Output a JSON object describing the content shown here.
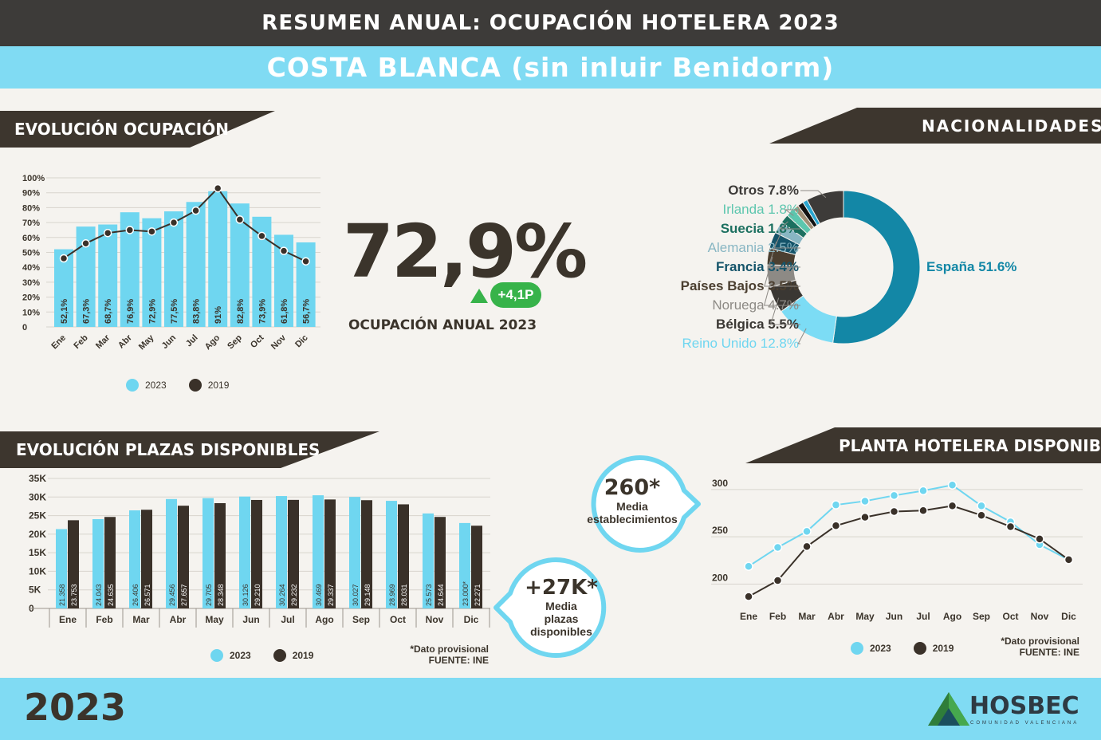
{
  "header": {
    "title": "RESUMEN ANUAL: OCUPACIÓN HOTELERA 2023",
    "subtitle": "COSTA BLANCA (sin inluir Benidorm)"
  },
  "colors": {
    "accent": "#80dbf3",
    "dark": "#3d3b39",
    "brown": "#3b342b",
    "green": "#37b34a",
    "bar2023": "#6fd6f0",
    "bar2019": "#3a3129"
  },
  "sections": {
    "ocupacion": "EVOLUCIÓN OCUPACIÓN",
    "nacionalidades": "NACIONALIDADES",
    "plazas": "EVOLUCIÓN PLAZAS DISPONIBLES",
    "planta": "PLANTA HOTELERA DISPONIBLE"
  },
  "kpi": {
    "value": "72,9%",
    "change": "+4,1P",
    "label": "OCUPACIÓN ANUAL 2023"
  },
  "bubbles": {
    "establecimientos": {
      "value": "260*",
      "line1": "Media",
      "line2": "establecimientos"
    },
    "plazas": {
      "value": "+27K*",
      "line1": "Media",
      "line2": "plazas",
      "line3": "disponibles"
    }
  },
  "legend": {
    "y2023": "2023",
    "y2019": "2019"
  },
  "notes": {
    "plazas": [
      "*Dato provisional",
      "FUENTE: INE"
    ],
    "planta": [
      "*Dato provisional",
      "FUENTE: INE"
    ]
  },
  "footer": {
    "year": "2023",
    "logo": "HOSBEC",
    "logo_sub": "COMUNIDAD VALENCIANA"
  },
  "chart_data": [
    {
      "type": "bar",
      "name": "ocupacion",
      "categories": [
        "Ene",
        "Feb",
        "Mar",
        "Abr",
        "May",
        "Jun",
        "Jul",
        "Ago",
        "Sep",
        "Oct",
        "Nov",
        "Dic"
      ],
      "series": [
        {
          "name": "2023",
          "values": [
            52.1,
            67.3,
            68.7,
            76.9,
            72.9,
            77.5,
            83.8,
            91,
            82.8,
            73.9,
            61.8,
            56.7
          ],
          "labels": [
            "52,1%",
            "67,3%",
            "68,7%",
            "76,9%",
            "72,9%",
            "77,5%",
            "83,8%",
            "91%",
            "82,8%",
            "73,9%",
            "61,8%",
            "56,7%"
          ]
        },
        {
          "name": "2019",
          "values": [
            46,
            56,
            63,
            65,
            64,
            70,
            78,
            93,
            72,
            61,
            51,
            44
          ]
        }
      ],
      "yticks": [
        "100%",
        "90%",
        "80%",
        "70%",
        "60%",
        "50%",
        "40%",
        "30%",
        "20%",
        "10%",
        "0"
      ],
      "ylim": [
        0,
        100
      ]
    },
    {
      "type": "pie",
      "name": "nacionalidades",
      "slices": [
        {
          "label": "España",
          "value": 51.6,
          "text": "51.6%",
          "color": "#1387a6"
        },
        {
          "label": "Reino Unido",
          "value": 12.8,
          "text": "12.8%",
          "color": "#7cdcf5"
        },
        {
          "label": "Bélgica",
          "value": 5.5,
          "text": "5.5%",
          "color": "#3a3733"
        },
        {
          "label": "Noruega",
          "value": 4.7,
          "text": "4.7%",
          "color": "#8d8a85"
        },
        {
          "label": "Países Bajos",
          "value": 3.5,
          "text": "3.5%",
          "color": "#4b3f30"
        },
        {
          "label": "Francia",
          "value": 3.4,
          "text": "3.4%",
          "color": "#15546a"
        },
        {
          "label": "Alemania",
          "value": 2.5,
          "text": "2.5%",
          "color": "#88b6c3"
        },
        {
          "label": "Suecia",
          "value": 1.8,
          "text": "1.8%",
          "color": "#1c7060"
        },
        {
          "label": "Irlanda",
          "value": 1.8,
          "text": "1.8%",
          "color": "#5cc6ae"
        },
        {
          "label": "",
          "value": 1.2,
          "text": "",
          "color": "#a08f76"
        },
        {
          "label": "",
          "value": 1.2,
          "text": "",
          "color": "#111111"
        },
        {
          "label": "",
          "value": 1.0,
          "text": "",
          "color": "#2aa6d0"
        },
        {
          "label": "Otros",
          "value": 7.8,
          "text": "7.8%",
          "color": "#3d3b39"
        }
      ]
    },
    {
      "type": "bar",
      "name": "plazas",
      "categories": [
        "Ene",
        "Feb",
        "Mar",
        "Abr",
        "May",
        "Jun",
        "Jul",
        "Ago",
        "Sep",
        "Oct",
        "Nov",
        "Dic"
      ],
      "series": [
        {
          "name": "2023",
          "values": [
            21358,
            24043,
            26406,
            29456,
            29705,
            30126,
            30264,
            30469,
            30027,
            28969,
            25573,
            23000
          ],
          "labels": [
            "21.358",
            "24.043",
            "26.406",
            "29.456",
            "29.705",
            "30.126",
            "30.264",
            "30.469",
            "30.027",
            "28.969",
            "25.573",
            "23.000*"
          ]
        },
        {
          "name": "2019",
          "values": [
            23753,
            24635,
            26571,
            27657,
            28348,
            29210,
            29232,
            29337,
            29148,
            28031,
            24644,
            22271
          ],
          "labels": [
            "23.753",
            "24.635",
            "26.571",
            "27.657",
            "28.348",
            "29.210",
            "29.232",
            "29.337",
            "29.148",
            "28.031",
            "24.644",
            "22.271"
          ]
        }
      ],
      "yticks": [
        "35K",
        "30K",
        "25K",
        "20K",
        "15K",
        "10K",
        "5K",
        "0"
      ],
      "ylim": [
        0,
        35000
      ]
    },
    {
      "type": "line",
      "name": "planta",
      "categories": [
        "Ene",
        "Feb",
        "Mar",
        "Abr",
        "May",
        "Jun",
        "Jul",
        "Ago",
        "Sep",
        "Oct",
        "Nov",
        "Dic"
      ],
      "series": [
        {
          "name": "2023",
          "values": [
            212,
            232,
            249,
            277,
            281,
            287,
            292,
            298,
            276,
            259,
            235,
            219
          ]
        },
        {
          "name": "2019",
          "values": [
            180,
            197,
            233,
            255,
            264,
            270,
            271,
            276,
            266,
            254,
            241,
            219
          ]
        }
      ],
      "yticks": [
        "300",
        "250",
        "200"
      ],
      "ylim": [
        170,
        305
      ]
    }
  ]
}
